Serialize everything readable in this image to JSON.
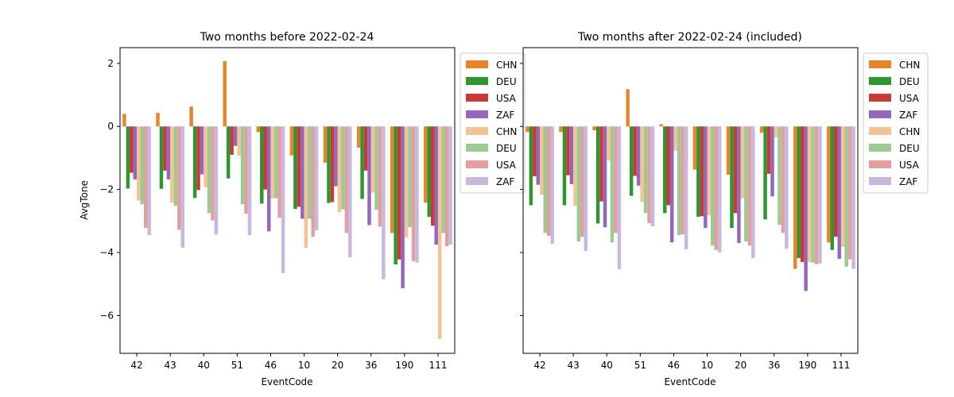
{
  "chart_data": {
    "type": "bar",
    "categories": [
      "42",
      "43",
      "40",
      "51",
      "46",
      "10",
      "20",
      "36",
      "190",
      "111"
    ],
    "xlabel": "EventCode",
    "ylabel": "AvgTone",
    "ylim": [
      -7.2,
      2.5
    ],
    "yticks": [
      2,
      0,
      -2,
      -4,
      -6
    ],
    "ytick_labels": [
      "2",
      "0",
      "−2",
      "−4",
      "−6"
    ],
    "sharey": true,
    "grid": false,
    "legend_placement": "outside-upper-right",
    "panels": [
      {
        "title": "Two months before 2022-02-24",
        "series": [
          {
            "name": "CHN",
            "color": "#e6852a",
            "values": [
              0.4,
              0.43,
              0.63,
              2.07,
              -0.18,
              -0.92,
              -1.15,
              -0.67,
              -3.38,
              -2.42
            ]
          },
          {
            "name": "DEU",
            "color": "#2f952f",
            "values": [
              -1.97,
              -1.98,
              -2.27,
              -1.65,
              -2.45,
              -2.62,
              -2.43,
              -2.3,
              -4.38,
              -2.87
            ]
          },
          {
            "name": "USA",
            "color": "#c83a3a",
            "values": [
              -1.47,
              -1.4,
              -2.02,
              -0.9,
              -2.0,
              -2.55,
              -2.4,
              -1.4,
              -4.22,
              -3.15
            ]
          },
          {
            "name": "ZAF",
            "color": "#9467bd",
            "values": [
              -1.68,
              -1.68,
              -1.52,
              -0.62,
              -3.33,
              -2.93,
              -1.9,
              -3.13,
              -5.13,
              -3.75
            ]
          },
          {
            "name": "CHN",
            "color": "#f2c393",
            "values": [
              -2.35,
              -2.42,
              -1.93,
              -0.92,
              -2.28,
              -3.85,
              -2.72,
              -2.1,
              -3.53,
              -6.75
            ]
          },
          {
            "name": "DEU",
            "color": "#9bca93",
            "values": [
              -2.47,
              -2.52,
              -2.75,
              -2.47,
              -2.28,
              -2.93,
              -2.63,
              -2.65,
              -3.2,
              -3.38
            ]
          },
          {
            "name": "USA",
            "color": "#e1a09f",
            "values": [
              -3.22,
              -3.28,
              -2.98,
              -2.77,
              -2.9,
              -3.5,
              -3.38,
              -3.18,
              -4.27,
              -3.8
            ]
          },
          {
            "name": "ZAF",
            "color": "#c9b8dd",
            "values": [
              -3.45,
              -3.85,
              -3.43,
              -3.45,
              -4.65,
              -3.3,
              -4.15,
              -4.85,
              -4.32,
              -3.75
            ]
          }
        ]
      },
      {
        "title": "Two months after 2022-02-24 (included)",
        "series": [
          {
            "name": "CHN",
            "color": "#e6852a",
            "values": [
              -0.18,
              -0.18,
              -0.12,
              1.18,
              0.07,
              -1.37,
              -1.53,
              -0.2,
              -4.52,
              -3.68
            ]
          },
          {
            "name": "DEU",
            "color": "#2f952f",
            "values": [
              -2.5,
              -2.5,
              -3.08,
              -2.2,
              -2.75,
              -2.87,
              -3.22,
              -2.95,
              -4.18,
              -3.92
            ]
          },
          {
            "name": "USA",
            "color": "#c83a3a",
            "values": [
              -1.58,
              -1.55,
              -2.38,
              -1.57,
              -2.5,
              -2.85,
              -2.75,
              -1.5,
              -4.3,
              -3.5
            ]
          },
          {
            "name": "ZAF",
            "color": "#9467bd",
            "values": [
              -1.85,
              -1.83,
              -3.2,
              -1.88,
              -3.68,
              -3.22,
              -3.7,
              -2.22,
              -5.22,
              -4.2
            ]
          },
          {
            "name": "CHN",
            "color": "#f2c393",
            "values": [
              -2.17,
              -2.52,
              -1.08,
              -2.4,
              -0.77,
              -2.82,
              -2.28,
              -0.35,
              -4.3,
              -3.82
            ]
          },
          {
            "name": "DEU",
            "color": "#9bca93",
            "values": [
              -3.38,
              -3.65,
              -3.68,
              -2.75,
              -3.45,
              -3.78,
              -3.65,
              -3.12,
              -4.32,
              -4.45
            ]
          },
          {
            "name": "USA",
            "color": "#e1a09f",
            "values": [
              -3.47,
              -3.5,
              -3.38,
              -3.07,
              -3.42,
              -3.92,
              -3.78,
              -3.38,
              -4.37,
              -4.22
            ]
          },
          {
            "name": "ZAF",
            "color": "#c9b8dd",
            "values": [
              -3.72,
              -3.95,
              -4.53,
              -3.17,
              -3.9,
              -4.0,
              -4.17,
              -3.88,
              -4.35,
              -4.52
            ]
          }
        ]
      }
    ]
  }
}
